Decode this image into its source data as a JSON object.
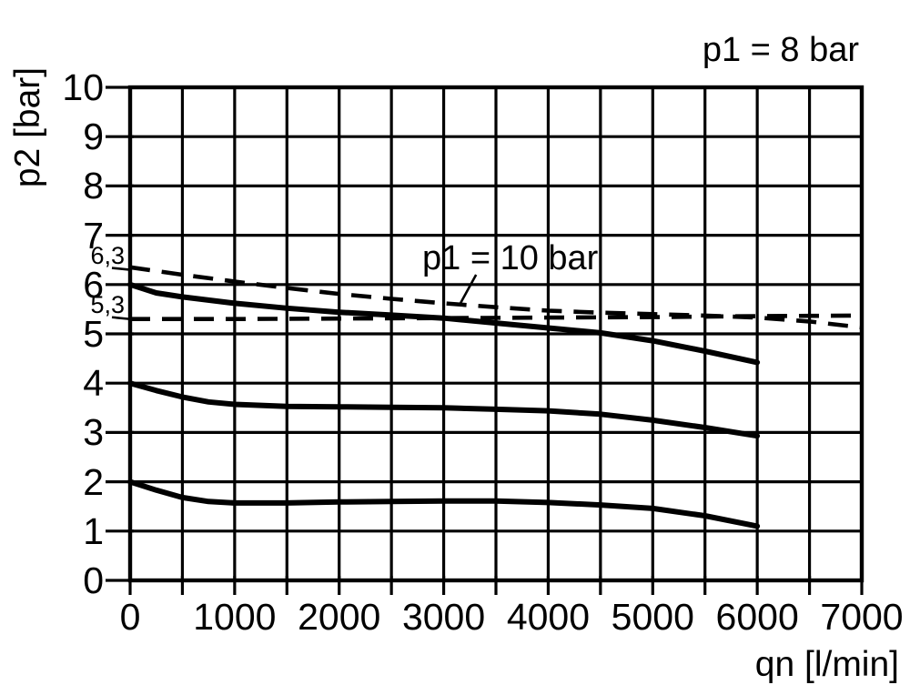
{
  "page": {
    "background": "#ffffff",
    "ink": "#000000"
  },
  "chart_data": {
    "type": "line",
    "title_annotation": "p1 = 8 bar",
    "curve_annotation": "p1 = 10 bar",
    "xlabel": "qn [l/min]",
    "ylabel": "p2 [bar]",
    "xlim": [
      0,
      7000
    ],
    "ylim": [
      0,
      10
    ],
    "x_grid_step": 500,
    "y_grid_step": 1,
    "grid": true,
    "legend_position": "none",
    "x_ticks": [
      {
        "value": 0,
        "label": "0"
      },
      {
        "value": 1000,
        "label": "1000"
      },
      {
        "value": 2000,
        "label": "2000"
      },
      {
        "value": 3000,
        "label": "3000"
      },
      {
        "value": 4000,
        "label": "4000"
      },
      {
        "value": 5000,
        "label": "5000"
      },
      {
        "value": 6000,
        "label": "6000"
      },
      {
        "value": 7000,
        "label": "7000"
      }
    ],
    "y_ticks": [
      {
        "value": 0,
        "label": "0"
      },
      {
        "value": 1,
        "label": "1"
      },
      {
        "value": 2,
        "label": "2"
      },
      {
        "value": 3,
        "label": "3"
      },
      {
        "value": 4,
        "label": "4"
      },
      {
        "value": 5,
        "label": "5"
      },
      {
        "value": 6,
        "label": "6"
      },
      {
        "value": 7,
        "label": "7"
      },
      {
        "value": 8,
        "label": "8"
      },
      {
        "value": 9,
        "label": "9"
      },
      {
        "value": 10,
        "label": "10"
      }
    ],
    "y_minor_labels": [
      {
        "value": 6.3,
        "label": "6,3"
      },
      {
        "value": 5.3,
        "label": "5,3"
      }
    ],
    "series": [
      {
        "name": "p1-8bar-setting-6bar",
        "style": "solid",
        "points": [
          [
            0,
            6.0
          ],
          [
            250,
            5.83
          ],
          [
            500,
            5.75
          ],
          [
            1000,
            5.62
          ],
          [
            1500,
            5.52
          ],
          [
            2000,
            5.44
          ],
          [
            2500,
            5.38
          ],
          [
            3000,
            5.32
          ],
          [
            3500,
            5.22
          ],
          [
            4000,
            5.12
          ],
          [
            4500,
            5.02
          ],
          [
            5000,
            4.86
          ],
          [
            5500,
            4.65
          ],
          [
            6000,
            4.42
          ]
        ]
      },
      {
        "name": "p1-8bar-setting-4bar",
        "style": "solid",
        "points": [
          [
            0,
            4.0
          ],
          [
            250,
            3.85
          ],
          [
            500,
            3.72
          ],
          [
            750,
            3.62
          ],
          [
            1000,
            3.57
          ],
          [
            1500,
            3.53
          ],
          [
            2000,
            3.52
          ],
          [
            2500,
            3.51
          ],
          [
            3000,
            3.5
          ],
          [
            3500,
            3.47
          ],
          [
            4000,
            3.44
          ],
          [
            4500,
            3.37
          ],
          [
            5000,
            3.25
          ],
          [
            5500,
            3.1
          ],
          [
            6000,
            2.93
          ]
        ]
      },
      {
        "name": "p1-8bar-setting-2bar",
        "style": "solid",
        "points": [
          [
            0,
            2.0
          ],
          [
            250,
            1.83
          ],
          [
            500,
            1.68
          ],
          [
            750,
            1.6
          ],
          [
            1000,
            1.57
          ],
          [
            1500,
            1.57
          ],
          [
            2000,
            1.59
          ],
          [
            2500,
            1.6
          ],
          [
            3000,
            1.61
          ],
          [
            3500,
            1.61
          ],
          [
            4000,
            1.58
          ],
          [
            4500,
            1.53
          ],
          [
            5000,
            1.46
          ],
          [
            5500,
            1.31
          ],
          [
            6000,
            1.1
          ]
        ]
      },
      {
        "name": "p1-10bar-setting-6p3bar",
        "style": "dashed",
        "points": [
          [
            0,
            6.35
          ],
          [
            500,
            6.2
          ],
          [
            1000,
            6.06
          ],
          [
            1500,
            5.93
          ],
          [
            2000,
            5.81
          ],
          [
            2500,
            5.71
          ],
          [
            3000,
            5.62
          ],
          [
            3500,
            5.54
          ],
          [
            4000,
            5.47
          ],
          [
            4500,
            5.43
          ],
          [
            5000,
            5.4
          ],
          [
            5500,
            5.37
          ],
          [
            6000,
            5.33
          ],
          [
            6500,
            5.25
          ],
          [
            7000,
            5.13
          ]
        ]
      },
      {
        "name": "p1-10bar-setting-5p3bar",
        "style": "dashed",
        "points": [
          [
            0,
            5.3
          ],
          [
            1000,
            5.3
          ],
          [
            2000,
            5.31
          ],
          [
            3000,
            5.32
          ],
          [
            4000,
            5.33
          ],
          [
            5000,
            5.34
          ],
          [
            6000,
            5.36
          ],
          [
            7000,
            5.37
          ]
        ]
      }
    ],
    "annotation_leader": {
      "from": [
        3310,
        6.2
      ],
      "to": [
        3150,
        5.58
      ]
    }
  }
}
